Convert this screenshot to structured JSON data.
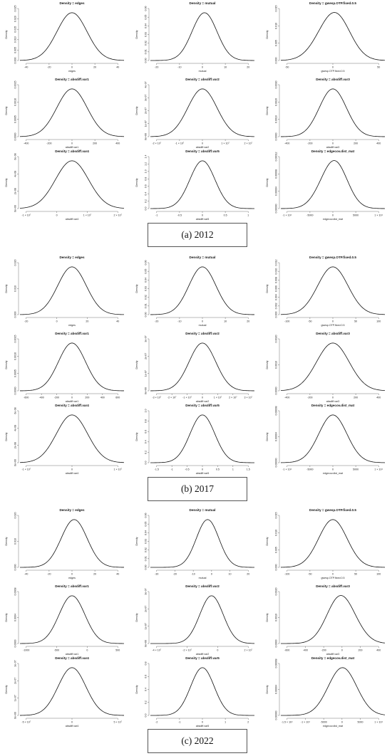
{
  "captions": [
    "(a) 2012",
    "(b) 2017",
    "(c) 2022"
  ],
  "chart_data": [
    {
      "type": "line",
      "title": "Density = edges",
      "xlabel": "edges",
      "ylabel": "Density",
      "xticks": [
        "-40",
        "-20",
        "0",
        "20",
        "40"
      ],
      "yticks": [
        "0.000",
        "0.005",
        "0.010",
        "0.015",
        "0.020",
        "0.025"
      ],
      "xlim": [
        -45,
        45
      ],
      "ylim": [
        0,
        0.025
      ],
      "mean": 0,
      "sd": 13,
      "skew": 0
    },
    {
      "type": "line",
      "title": "Density = mutual",
      "xlabel": "mutual",
      "ylabel": "Density",
      "xticks": [
        "-20",
        "-10",
        "0",
        "10",
        "20"
      ],
      "yticks": [
        "0.00",
        "0.01",
        "0.02",
        "0.03",
        "0.04",
        "0.05",
        "0.06"
      ],
      "xlim": [
        -25,
        25
      ],
      "ylim": [
        0,
        0.062
      ],
      "mean": 1,
      "sd": 6,
      "skew": 0
    },
    {
      "type": "line",
      "title": "Density = gwesp.OTP.fixed.0.5",
      "xlabel": "gwesp.OTP.fixed.0.5",
      "ylabel": "Density",
      "xticks": [
        "-50",
        "0",
        "50"
      ],
      "yticks": [
        "0.000",
        "0.005",
        "0.010",
        "0.015"
      ],
      "xlim": [
        -80,
        80
      ],
      "ylim": [
        0,
        0.016
      ],
      "mean": 0,
      "sd": 24,
      "skew": 0.1
    },
    {
      "type": "line",
      "title": "Density = absdiff.var1",
      "xlabel": "absdiff.var1",
      "ylabel": "Density",
      "xticks": [
        "-400",
        "-200",
        "0",
        "200",
        "400"
      ],
      "yticks": [
        "0.0000",
        "0.0005",
        "0.0010",
        "0.0015"
      ],
      "xlim": [
        -480,
        480
      ],
      "ylim": [
        0,
        0.0018
      ],
      "mean": 0,
      "sd": 140,
      "skew": 0
    },
    {
      "type": "line",
      "title": "Density = absdiff.var2",
      "xlabel": "absdiff.var2",
      "ylabel": "Density",
      "xticks": [
        "-2 × 10⁷",
        "-1 × 10⁷",
        "0",
        "1 × 10⁷",
        "2 × 10⁷"
      ],
      "yticks": [
        "0e+00",
        "1e-07",
        "2e-07",
        "3e-07",
        "4e-07"
      ],
      "xlim": [
        -25,
        25
      ],
      "ylim": [
        0,
        0.41
      ],
      "mean": 0,
      "sd": 7,
      "skew": 0
    },
    {
      "type": "line",
      "title": "Density = absdiff.var3",
      "xlabel": "absdiff.var3",
      "ylabel": "Density",
      "xticks": [
        "-400",
        "-200",
        "0",
        "200",
        "400"
      ],
      "yticks": [
        "0.0000",
        "0.0010",
        "0.0020",
        "0.0030"
      ],
      "xlim": [
        -480,
        480
      ],
      "ylim": [
        0,
        0.0032
      ],
      "mean": 0,
      "sd": 125,
      "skew": 0
    },
    {
      "type": "line",
      "title": "Density = absdiff.var4",
      "xlabel": "absdiff.var4",
      "ylabel": "Density",
      "xticks": [
        "-1 × 10⁷",
        "0",
        "1 × 10⁷",
        "2 × 10⁷"
      ],
      "yticks": [
        "0e+00",
        "2e-08",
        "4e-08",
        "6e-08"
      ],
      "xlim": [
        -22,
        22
      ],
      "ylim": [
        0,
        0.062
      ],
      "mean": 0,
      "sd": 7,
      "skew": 0
    },
    {
      "type": "line",
      "title": "Density = absdiff.var5",
      "xlabel": "absdiff.var5",
      "ylabel": "Density",
      "xticks": [
        "-1",
        "-0.5",
        "0",
        "0.5",
        "1"
      ],
      "yticks": [
        "0.0",
        "0.2",
        "0.4",
        "0.6",
        "0.8",
        "1.0",
        "1.2",
        "1.4"
      ],
      "xlim": [
        -1.2,
        1.2
      ],
      "ylim": [
        0,
        1.4
      ],
      "mean": 0,
      "sd": 0.29,
      "skew": 0
    },
    {
      "type": "line",
      "title": "Density = edgecov.dist_mat",
      "xlabel": "edgecov.dist_mat",
      "ylabel": "Density",
      "xticks": [
        "-1 × 10⁴",
        "-5000",
        "0",
        "5000",
        "1 × 10⁴"
      ],
      "yticks": [
        "0.00000",
        "0.00004",
        "0.00008",
        "0.00012"
      ],
      "xlim": [
        -13000,
        13000
      ],
      "ylim": [
        0,
        0.00013
      ],
      "mean": 0,
      "sd": 3300,
      "skew": 0.1
    },
    {
      "type": "line",
      "title": "Density = edges",
      "xlabel": "edges",
      "ylabel": "Density",
      "xticks": [
        "-20",
        "0",
        "20",
        "40"
      ],
      "yticks": [
        "0.000",
        "0.010",
        "0.020"
      ],
      "xlim": [
        -40,
        40
      ],
      "ylim": [
        0,
        0.024
      ],
      "mean": 0,
      "sd": 11,
      "skew": 0
    },
    {
      "type": "line",
      "title": "Density = mutual",
      "xlabel": "mutual",
      "ylabel": "Density",
      "xticks": [
        "-20",
        "-10",
        "0",
        "10",
        "20"
      ],
      "yticks": [
        "0.00",
        "0.01",
        "0.02",
        "0.03",
        "0.04",
        "0.05",
        "0.06"
      ],
      "xlim": [
        -25,
        25
      ],
      "ylim": [
        0,
        0.062
      ],
      "mean": 0,
      "sd": 6.5,
      "skew": 0
    },
    {
      "type": "line",
      "title": "Density = gwesp.OTP.fixed.0.5",
      "xlabel": "gwesp.OTP.fixed.0.5",
      "ylabel": "Density",
      "xticks": [
        "-100",
        "-50",
        "0",
        "50",
        "100"
      ],
      "yticks": [
        "0.000",
        "0.002",
        "0.004",
        "0.006",
        "0.008",
        "0.010",
        "0.012"
      ],
      "xlim": [
        -110,
        110
      ],
      "ylim": [
        0,
        0.012
      ],
      "mean": 0,
      "sd": 32,
      "skew": 0
    },
    {
      "type": "line",
      "title": "Density = absdiff.var1",
      "xlabel": "absdiff.var1",
      "ylabel": "Density",
      "xticks": [
        "-600",
        "-400",
        "-200",
        "0",
        "200",
        "400",
        "600"
      ],
      "yticks": [
        "0.0000",
        "0.0005",
        "0.0010",
        "0.0015"
      ],
      "xlim": [
        -650,
        650
      ],
      "ylim": [
        0,
        0.0016
      ],
      "mean": 0,
      "sd": 170,
      "skew": 0
    },
    {
      "type": "line",
      "title": "Density = absdiff.var2",
      "xlabel": "absdiff.var2",
      "ylabel": "Density",
      "xticks": [
        "-3 × 10⁷",
        "-2 × 10⁷",
        "-1 × 10⁷",
        "0",
        "1 × 10⁷",
        "2 × 10⁷",
        "3 × 10⁷"
      ],
      "yticks": [
        "0e+00",
        "1e-07",
        "2e-07",
        "3e-07"
      ],
      "xlim": [
        -35,
        35
      ],
      "ylim": [
        0,
        0.32
      ],
      "mean": 0,
      "sd": 9,
      "skew": 0
    },
    {
      "type": "line",
      "title": "Density = absdiff.var3",
      "xlabel": "absdiff.var3",
      "ylabel": "Density",
      "xticks": [
        "-400",
        "-200",
        "0",
        "200",
        "400"
      ],
      "yticks": [
        "0.0000",
        "0.0010",
        "0.0020"
      ],
      "xlim": [
        -480,
        480
      ],
      "ylim": [
        0,
        0.0024
      ],
      "mean": 0,
      "sd": 150,
      "skew": 0
    },
    {
      "type": "line",
      "title": "Density = absdiff.var4",
      "xlabel": "absdiff.var4",
      "ylabel": "Density",
      "xticks": [
        "-1 × 10⁷",
        "0",
        "1 × 10⁷"
      ],
      "yticks": [
        "0e+00",
        "2e-08",
        "4e-08",
        "6e-08"
      ],
      "xlim": [
        -20,
        20
      ],
      "ylim": [
        0,
        0.062
      ],
      "mean": 0,
      "sd": 6,
      "skew": 0
    },
    {
      "type": "line",
      "title": "Density = absdiff.var5",
      "xlabel": "absdiff.var5",
      "ylabel": "Density",
      "xticks": [
        "-1.5",
        "-1",
        "-0.5",
        "0",
        "0.5",
        "1",
        "1.5"
      ],
      "yticks": [
        "0.0",
        "0.2",
        "0.4",
        "0.6",
        "0.8",
        "1.0"
      ],
      "xlim": [
        -1.6,
        1.6
      ],
      "ylim": [
        0,
        1.05
      ],
      "mean": 0,
      "sd": 0.38,
      "skew": 0
    },
    {
      "type": "line",
      "title": "Density = edgecov.dist_mat",
      "xlabel": "edgecov.dist_mat",
      "ylabel": "Density",
      "xticks": [
        "-1 × 10⁴",
        "-5000",
        "0",
        "5000",
        "1 × 10⁴"
      ],
      "yticks": [
        "0.00000",
        "0.00004",
        "0.00008"
      ],
      "xlim": [
        -13000,
        13000
      ],
      "ylim": [
        0,
        0.00011
      ],
      "mean": 0,
      "sd": 3500,
      "skew": 0
    },
    {
      "type": "line",
      "title": "Density = edges",
      "xlabel": "edges",
      "ylabel": "Density",
      "xticks": [
        "-40",
        "-20",
        "0",
        "20",
        "40"
      ],
      "yticks": [
        "0.000",
        "0.010",
        "0.020"
      ],
      "xlim": [
        -48,
        48
      ],
      "ylim": [
        0,
        0.024
      ],
      "mean": 2,
      "sd": 12,
      "skew": 0
    },
    {
      "type": "line",
      "title": "Density = mutual",
      "xlabel": "mutual",
      "ylabel": "Density",
      "xticks": [
        "-30",
        "-20",
        "-10",
        "0",
        "10",
        "20"
      ],
      "yticks": [
        "0.00",
        "0.01",
        "0.02",
        "0.03",
        "0.04",
        "0.05",
        "0.06"
      ],
      "xlim": [
        -32,
        28
      ],
      "ylim": [
        0,
        0.062
      ],
      "mean": 1,
      "sd": 6.5,
      "skew": 0
    },
    {
      "type": "line",
      "title": "Density = gwesp.OTP.fixed.0.5",
      "xlabel": "gwesp.OTP.fixed.0.5",
      "ylabel": "Density",
      "xticks": [
        "-100",
        "-50",
        "0",
        "50",
        "100"
      ],
      "yticks": [
        "0.000",
        "0.005",
        "0.010",
        "0.015"
      ],
      "xlim": [
        -110,
        110
      ],
      "ylim": [
        0,
        0.016
      ],
      "mean": 0,
      "sd": 30,
      "skew": 0
    },
    {
      "type": "line",
      "title": "Density = absdiff.var1",
      "xlabel": "absdiff.var1",
      "ylabel": "Density",
      "xticks": [
        "-1000",
        "-500",
        "0",
        "500"
      ],
      "yticks": [
        "0.0000",
        "0.0004",
        "0.0008"
      ],
      "xlim": [
        -1050,
        1050
      ],
      "ylim": [
        0,
        0.00085
      ],
      "mean": 0,
      "sd": 260,
      "skew": 0
    },
    {
      "type": "line",
      "title": "Density = absdiff.var2",
      "xlabel": "absdiff.var2",
      "ylabel": "Density",
      "xticks": [
        "-4 × 10⁷",
        "-2 × 10⁷",
        "0",
        "2 × 10⁷"
      ],
      "yticks": [
        "0e+00",
        "1e-07",
        "2e-07",
        "3e-07"
      ],
      "xlim": [
        -45,
        35
      ],
      "ylim": [
        0,
        0.32
      ],
      "mean": 2,
      "sd": 9,
      "skew": 0
    },
    {
      "type": "line",
      "title": "Density = absdiff.var3",
      "xlabel": "absdiff.var3",
      "ylabel": "Density",
      "xticks": [
        "-600",
        "-400",
        "-200",
        "0",
        "200",
        "400"
      ],
      "yticks": [
        "0.0000",
        "0.0010",
        "0.0020"
      ],
      "xlim": [
        -650,
        450
      ],
      "ylim": [
        0,
        0.0024
      ],
      "mean": 0,
      "sd": 150,
      "skew": -0.1
    },
    {
      "type": "line",
      "title": "Density = absdiff.var4",
      "xlabel": "absdiff.var4",
      "ylabel": "Density",
      "xticks": [
        "-5 × 10⁷",
        "0",
        "5 × 10⁷"
      ],
      "yticks": [
        "0e+00",
        "1e-07",
        "2e-07",
        "3e-07"
      ],
      "xlim": [
        -75,
        75
      ],
      "ylim": [
        0,
        0.32
      ],
      "mean": 0,
      "sd": 20,
      "skew": 0
    },
    {
      "type": "line",
      "title": "Density = absdiff.var5",
      "xlabel": "absdiff.var5",
      "ylabel": "Density",
      "xticks": [
        "-2",
        "-1",
        "0",
        "1",
        "2"
      ],
      "yticks": [
        "0.0",
        "0.2",
        "0.4",
        "0.6",
        "0.8"
      ],
      "xlim": [
        -2.3,
        2.3
      ],
      "ylim": [
        0,
        0.8
      ],
      "mean": 0,
      "sd": 0.52,
      "skew": 0
    },
    {
      "type": "line",
      "title": "Density = edgecov.dist_mat",
      "xlabel": "edgecov.dist_mat",
      "ylabel": "Density",
      "xticks": [
        "-1.5 × 10⁴",
        "-1 × 10⁴",
        "-5000",
        "0",
        "5000",
        "1 × 10⁴"
      ],
      "yticks": [
        "0.00000",
        "0.00004",
        "0.00008"
      ],
      "xlim": [
        -16000,
        11000
      ],
      "ylim": [
        0,
        0.0001
      ],
      "mean": 0,
      "sd": 3700,
      "skew": 0
    }
  ]
}
